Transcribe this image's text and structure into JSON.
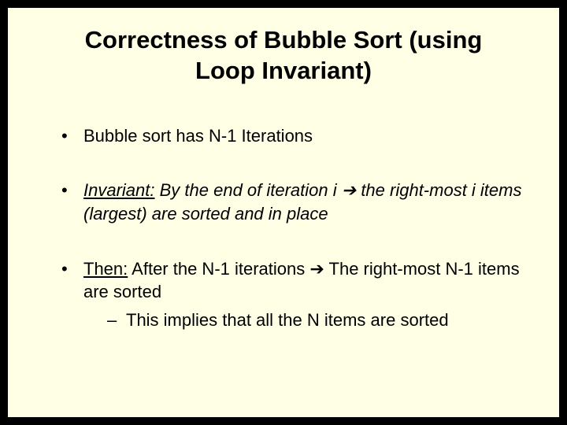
{
  "background_color": "#ffffe5",
  "border_color": "#000000",
  "title": "Correctness of Bubble Sort (using Loop Invariant)",
  "title_fontsize": 31,
  "body_fontsize": 22,
  "text_color": "#000000",
  "bullets": [
    {
      "text": "Bubble sort has N-1 Iterations"
    },
    {
      "label": "Invariant:",
      "pre": " By the end of iteration i ",
      "arrow": "➔",
      "post": " the right-most i items (largest) are sorted and in place",
      "italic": true
    },
    {
      "label": "Then:",
      "pre": " After the N-1 iterations ",
      "arrow": "➔",
      "post": " The right-most N-1 items are sorted",
      "sub": "This implies that all the N items are sorted"
    }
  ]
}
